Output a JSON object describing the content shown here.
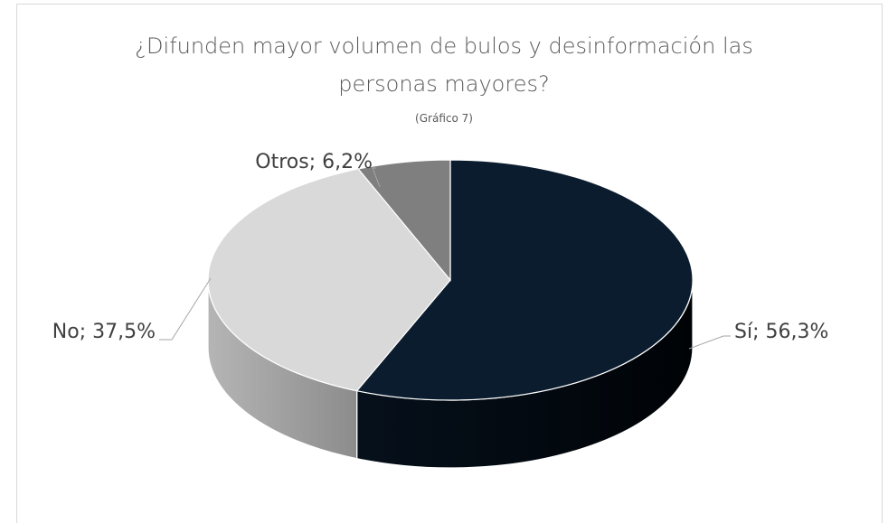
{
  "chart_data": {
    "type": "pie3d",
    "title": "¿Difunden mayor volumen de bulos y desinformación las personas mayores?",
    "subtitle": "(Gráfico 7)",
    "values": [
      56.3,
      37.5,
      6.2
    ],
    "value_labels": [
      "Sí; 56,3%",
      "No; 37,5%",
      "Otros; 6,2%"
    ],
    "colors": [
      "#0b1c2e",
      "#d9d9d9",
      "#7f7f7f"
    ]
  }
}
